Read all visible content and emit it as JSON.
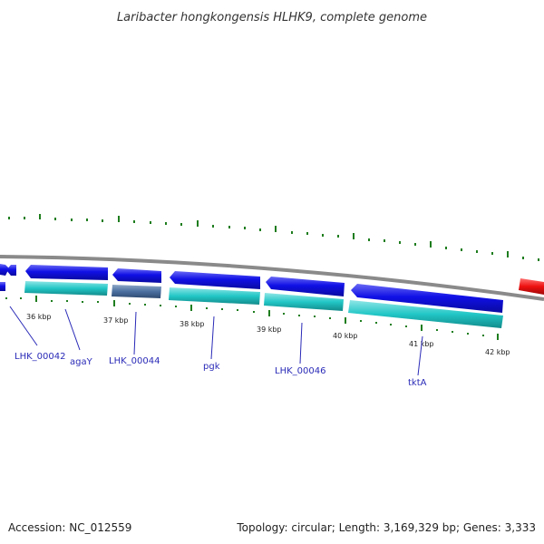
{
  "title": "Laribacter hongkongensis HLHK9, complete genome",
  "footer": {
    "accession": "Accession: NC_012559",
    "summary": "Topology: circular; Length: 3,169,329 bp; Genes: 3,333"
  },
  "colors": {
    "cds": "#1010e6",
    "gene_cyan": "#22c6c6",
    "gene_slate": "#4a6fa0",
    "backbone": "#8a8a8a",
    "tick": "#1e7d1e",
    "highlight": "#ee1111",
    "label": "#2a2ab8"
  },
  "kbp_ticks": [
    "36 kbp",
    "37 kbp",
    "38 kbp",
    "39 kbp",
    "40 kbp",
    "41 kbp",
    "42 kbp"
  ],
  "gene_labels": [
    "LHK_00042",
    "agaY",
    "LHK_00044",
    "pgk",
    "LHK_00046",
    "tktA"
  ]
}
